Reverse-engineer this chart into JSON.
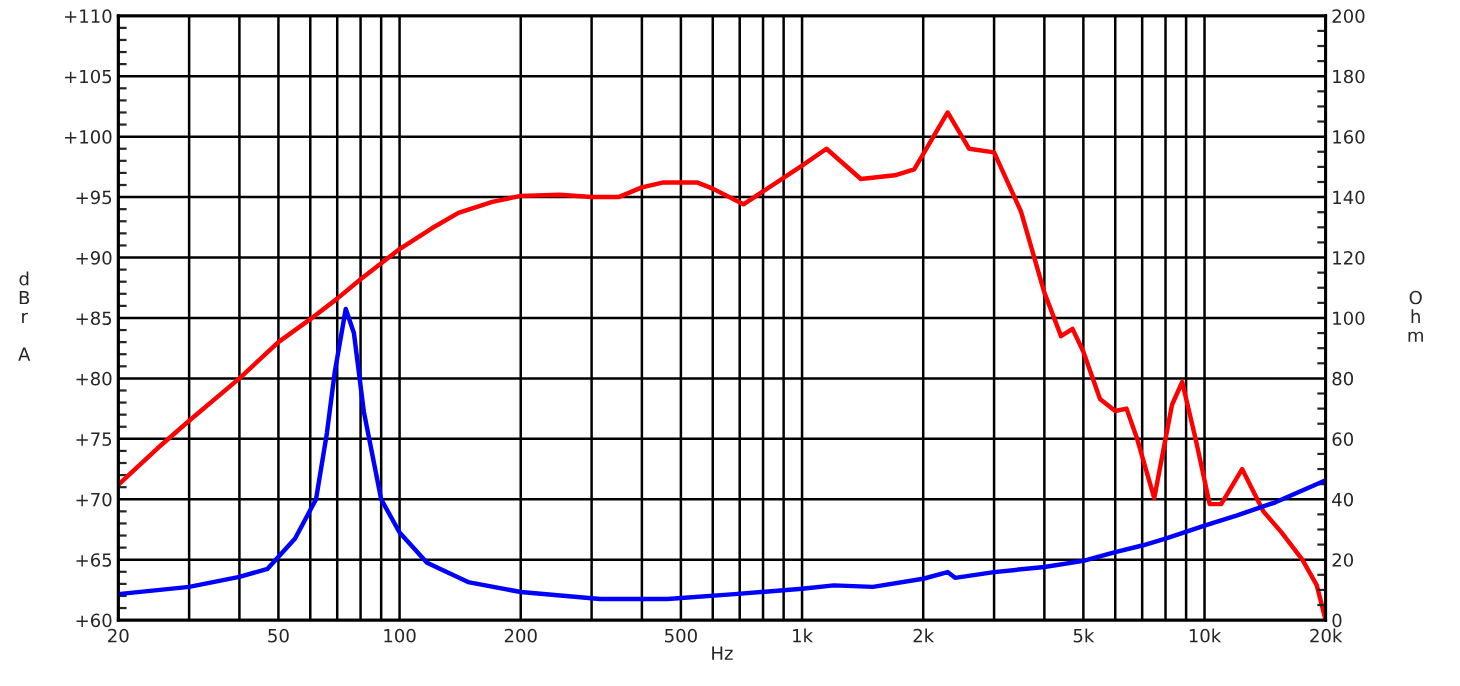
{
  "chart_data": {
    "type": "line",
    "xlabel": "Hz",
    "ylabel": "dBr A",
    "y2label": "Ohm",
    "log": "x",
    "grid": true,
    "legend": false,
    "marker": "none",
    "line_style": "solid",
    "xlim": [
      20,
      20000
    ],
    "xticks": [
      20,
      {
        "value": 30,
        "label": null
      },
      {
        "value": 40,
        "label": null
      },
      50,
      {
        "value": 60,
        "label": null
      },
      {
        "value": 70,
        "label": null
      },
      {
        "value": 80,
        "label": null
      },
      {
        "value": 90,
        "label": null
      },
      100,
      200,
      {
        "value": 300,
        "label": null
      },
      {
        "value": 400,
        "label": null
      },
      500,
      {
        "value": 600,
        "label": null
      },
      {
        "value": 700,
        "label": null
      },
      {
        "value": 800,
        "label": null
      },
      {
        "value": 900,
        "label": null
      },
      {
        "value": 1000,
        "label": "1k"
      },
      {
        "value": 2000,
        "label": "2k"
      },
      {
        "value": 3000,
        "label": null
      },
      {
        "value": 4000,
        "label": null
      },
      {
        "value": 5000,
        "label": "5k"
      },
      {
        "value": 6000,
        "label": null
      },
      {
        "value": 7000,
        "label": null
      },
      {
        "value": 8000,
        "label": null
      },
      {
        "value": 9000,
        "label": null
      },
      {
        "value": 10000,
        "label": "10k"
      },
      {
        "value": 20000,
        "label": "20k"
      }
    ],
    "ylim": [
      60,
      110
    ],
    "yticks": [
      {
        "value": 60,
        "label": "+60"
      },
      {
        "value": 61,
        "label": null
      },
      {
        "value": 62,
        "label": null
      },
      {
        "value": 63,
        "label": null
      },
      {
        "value": 64,
        "label": null
      },
      {
        "value": 65,
        "label": "+65"
      },
      {
        "value": 66,
        "label": null
      },
      {
        "value": 67,
        "label": null
      },
      {
        "value": 68,
        "label": null
      },
      {
        "value": 69,
        "label": null
      },
      {
        "value": 70,
        "label": "+70"
      },
      {
        "value": 71,
        "label": null
      },
      {
        "value": 72,
        "label": null
      },
      {
        "value": 73,
        "label": null
      },
      {
        "value": 74,
        "label": null
      },
      {
        "value": 75,
        "label": "+75"
      },
      {
        "value": 76,
        "label": null
      },
      {
        "value": 77,
        "label": null
      },
      {
        "value": 78,
        "label": null
      },
      {
        "value": 79,
        "label": null
      },
      {
        "value": 80,
        "label": "+80"
      },
      {
        "value": 81,
        "label": null
      },
      {
        "value": 82,
        "label": null
      },
      {
        "value": 83,
        "label": null
      },
      {
        "value": 84,
        "label": null
      },
      {
        "value": 85,
        "label": "+85"
      },
      {
        "value": 86,
        "label": null
      },
      {
        "value": 87,
        "label": null
      },
      {
        "value": 88,
        "label": null
      },
      {
        "value": 89,
        "label": null
      },
      {
        "value": 90,
        "label": "+90"
      },
      {
        "value": 91,
        "label": null
      },
      {
        "value": 92,
        "label": null
      },
      {
        "value": 93,
        "label": null
      },
      {
        "value": 94,
        "label": null
      },
      {
        "value": 95,
        "label": "+95"
      },
      {
        "value": 96,
        "label": null
      },
      {
        "value": 97,
        "label": null
      },
      {
        "value": 98,
        "label": null
      },
      {
        "value": 99,
        "label": null
      },
      {
        "value": 100,
        "label": "+100"
      },
      {
        "value": 101,
        "label": null
      },
      {
        "value": 102,
        "label": null
      },
      {
        "value": 103,
        "label": null
      },
      {
        "value": 104,
        "label": null
      },
      {
        "value": 105,
        "label": "+105"
      },
      {
        "value": 106,
        "label": null
      },
      {
        "value": 107,
        "label": null
      },
      {
        "value": 108,
        "label": null
      },
      {
        "value": 109,
        "label": null
      },
      {
        "value": 110,
        "label": "+110"
      }
    ],
    "y2lim": [
      0,
      200
    ],
    "y2ticks": [
      0,
      {
        "value": 5,
        "label": null
      },
      {
        "value": 10,
        "label": null
      },
      {
        "value": 15,
        "label": null
      },
      20,
      {
        "value": 25,
        "label": null
      },
      {
        "value": 30,
        "label": null
      },
      {
        "value": 35,
        "label": null
      },
      40,
      {
        "value": 45,
        "label": null
      },
      {
        "value": 50,
        "label": null
      },
      {
        "value": 55,
        "label": null
      },
      60,
      {
        "value": 65,
        "label": null
      },
      {
        "value": 70,
        "label": null
      },
      {
        "value": 75,
        "label": null
      },
      80,
      {
        "value": 85,
        "label": null
      },
      {
        "value": 90,
        "label": null
      },
      {
        "value": 95,
        "label": null
      },
      100,
      {
        "value": 105,
        "label": null
      },
      {
        "value": 110,
        "label": null
      },
      {
        "value": 115,
        "label": null
      },
      120,
      {
        "value": 125,
        "label": null
      },
      {
        "value": 130,
        "label": null
      },
      {
        "value": 135,
        "label": null
      },
      140,
      {
        "value": 145,
        "label": null
      },
      {
        "value": 150,
        "label": null
      },
      {
        "value": 155,
        "label": null
      },
      160,
      {
        "value": 165,
        "label": null
      },
      {
        "value": 170,
        "label": null
      },
      {
        "value": 175,
        "label": null
      },
      180,
      {
        "value": 185,
        "label": null
      },
      {
        "value": 190,
        "label": null
      },
      {
        "value": 195,
        "label": null
      },
      200
    ],
    "series": [
      {
        "color": "#ff0000",
        "x": [
          20,
          25,
          30,
          40,
          50,
          60,
          70,
          80,
          100,
          120,
          140,
          170,
          200,
          250,
          300,
          350,
          400,
          450,
          550,
          600,
          715,
          1000,
          1150,
          1400,
          1700,
          1900,
          2300,
          2600,
          3000,
          3500,
          4000,
          4400,
          4700,
          5000,
          5500,
          6000,
          6400,
          6800,
          7500,
          8300,
          8800,
          9500,
          10300,
          11000,
          12400,
          14000,
          15500,
          17500,
          19000,
          20000
        ],
        "values": [
          71.2,
          74.2,
          76.5,
          80,
          83,
          84.9,
          86.6,
          88.2,
          90.7,
          92.4,
          93.7,
          94.6,
          95.1,
          95.2,
          95,
          95,
          95.8,
          96.2,
          96.2,
          95.7,
          94.4,
          97.6,
          99,
          96.5,
          96.8,
          97.3,
          102,
          99,
          98.7,
          93.8,
          87.1,
          83.5,
          84.1,
          82.2,
          78.3,
          77.3,
          77.5,
          75,
          70.1,
          77.8,
          79.7,
          75,
          69.6,
          69.6,
          72.5,
          69,
          67.3,
          65,
          62.9,
          60
        ]
      },
      {
        "color": "#0000ff",
        "axis": "y2",
        "x": [
          20,
          30,
          40,
          47,
          55,
          62,
          66,
          69,
          73.5,
          77,
          81.5,
          90,
          100,
          117,
          148,
          200,
          315,
          463,
          680,
          1000,
          1200,
          1500,
          2000,
          2300,
          2400,
          3000,
          4000,
          5000,
          6000,
          7000,
          8000,
          10000,
          12000,
          15000,
          20000
        ],
        "values": [
          8.6,
          11,
          14.3,
          17,
          27,
          40,
          62,
          82,
          103,
          95,
          69,
          40,
          29,
          19,
          12.6,
          9.3,
          7,
          7,
          8.6,
          10.4,
          11.5,
          11,
          13.7,
          15.9,
          14,
          15.9,
          17.6,
          19.6,
          22.5,
          24.7,
          27,
          31.3,
          34.6,
          39,
          46.3
        ]
      }
    ]
  }
}
